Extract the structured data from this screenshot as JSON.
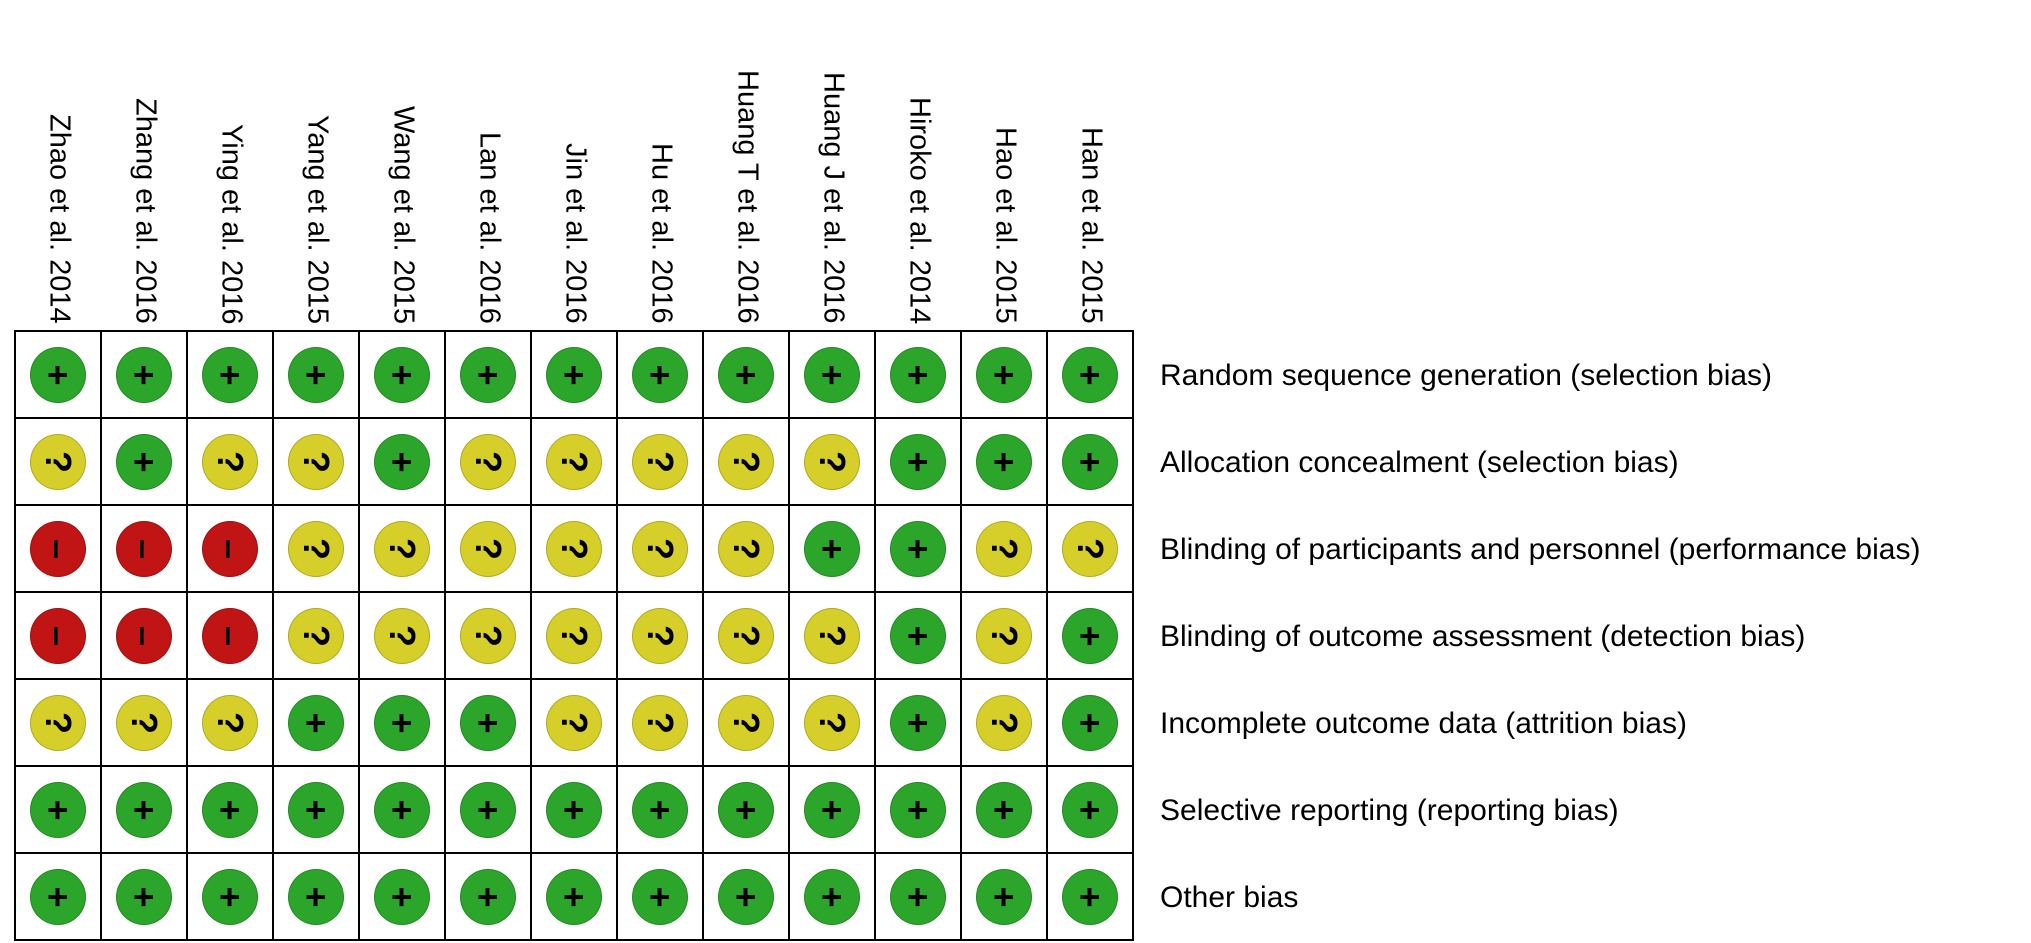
{
  "chart_data": {
    "type": "heatmap",
    "columns": [
      "Zhao et al. 2014",
      "Zhang et al. 2016",
      "Ying et al. 2016",
      "Yang et al. 2015",
      "Wang et al. 2015",
      "Lan et al. 2016",
      "Jin et al. 2016",
      "Hu et al. 2016",
      "Huang T et al. 2016",
      "Huang J et al. 2016",
      "Hiroko et al. 2014",
      "Hao et al. 2015",
      "Han et al. 2015"
    ],
    "rows": [
      "Random sequence generation (selection bias)",
      "Allocation concealment (selection bias)",
      "Blinding of participants and personnel (performance bias)",
      "Blinding of outcome assessment (detection bias)",
      "Incomplete outcome data (attrition bias)",
      "Selective reporting (reporting bias)",
      "Other bias"
    ],
    "values": [
      [
        "+",
        "+",
        "+",
        "+",
        "+",
        "+",
        "+",
        "+",
        "+",
        "+",
        "+",
        "+",
        "+"
      ],
      [
        "?",
        "+",
        "?",
        "?",
        "+",
        "?",
        "?",
        "?",
        "?",
        "?",
        "+",
        "+",
        "+"
      ],
      [
        "-",
        "-",
        "-",
        "?",
        "?",
        "?",
        "?",
        "?",
        "?",
        "+",
        "+",
        "?",
        "?"
      ],
      [
        "-",
        "-",
        "-",
        "?",
        "?",
        "?",
        "?",
        "?",
        "?",
        "?",
        "+",
        "?",
        "+"
      ],
      [
        "?",
        "?",
        "?",
        "+",
        "+",
        "+",
        "?",
        "?",
        "?",
        "?",
        "+",
        "?",
        "+"
      ],
      [
        "+",
        "+",
        "+",
        "+",
        "+",
        "+",
        "+",
        "+",
        "+",
        "+",
        "+",
        "+",
        "+"
      ],
      [
        "+",
        "+",
        "+",
        "+",
        "+",
        "+",
        "+",
        "+",
        "+",
        "+",
        "+",
        "+",
        "+"
      ]
    ],
    "legend": {
      "+": {
        "key": "low-risk",
        "meaning": "low risk of bias",
        "display": "+",
        "color": "#2BA62B"
      },
      "?": {
        "key": "unclear-risk",
        "meaning": "unclear risk of bias",
        "display": "?",
        "color": "#D6CE29"
      },
      "-": {
        "key": "high-risk",
        "meaning": "high risk of bias",
        "display": "–",
        "color": "#C11414"
      }
    },
    "grid": true,
    "legend_position": "none"
  }
}
